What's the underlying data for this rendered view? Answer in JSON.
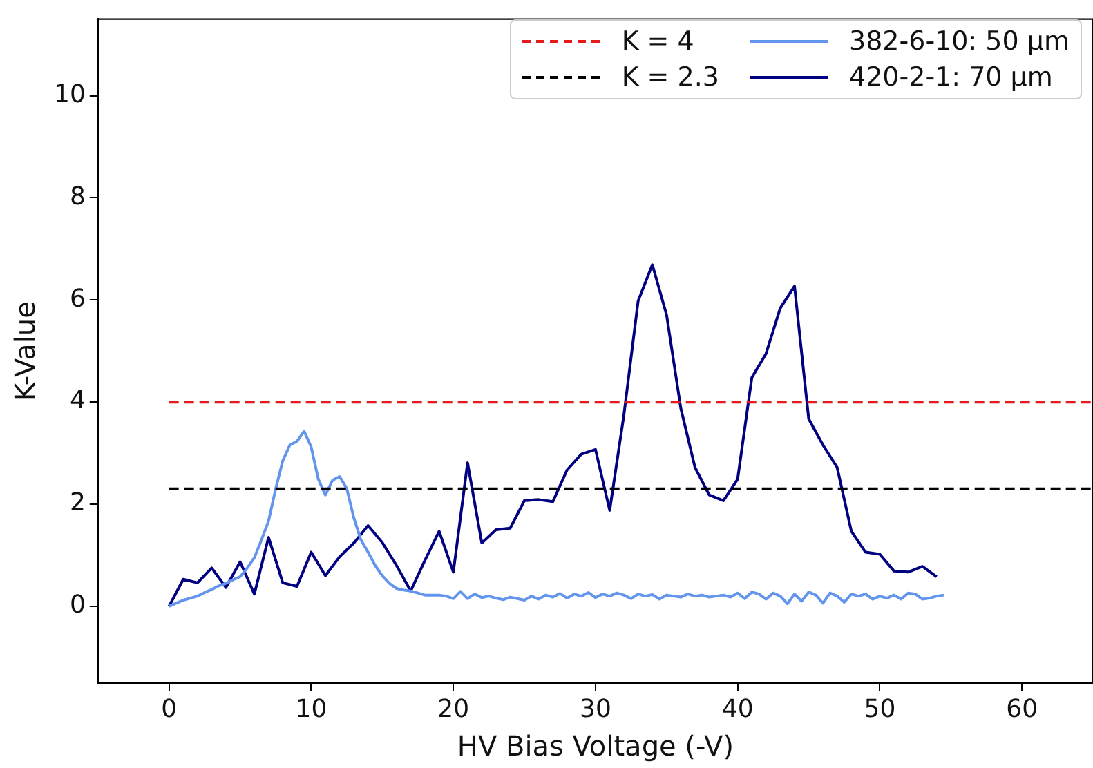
{
  "chart_data": {
    "type": "line",
    "xlabel": "HV Bias Voltage (-V)",
    "ylabel": "K-Value",
    "xlim": [
      -5,
      65
    ],
    "ylim": [
      -1.5,
      11.5
    ],
    "xticks": [
      0,
      10,
      20,
      30,
      40,
      50,
      60
    ],
    "yticks": [
      0,
      2,
      4,
      6,
      8,
      10
    ],
    "grid": false,
    "legend": "top right",
    "marker": "none",
    "series": [
      {
        "name": "K = 4",
        "color": "#e41a1c",
        "line_style": "dashed",
        "x": [
          0,
          65
        ],
        "values": [
          4,
          4
        ]
      },
      {
        "name": "K = 2.3",
        "color": "#000000",
        "line_style": "dashed",
        "x": [
          0,
          65
        ],
        "values": [
          2.3,
          2.3
        ]
      },
      {
        "name": "382-6-10: 50 μm",
        "color": "#6495ed",
        "line_style": "solid",
        "x": [
          0,
          0.5,
          1,
          1.5,
          2,
          2.5,
          3,
          3.5,
          4,
          4.5,
          5,
          5.5,
          6,
          6.5,
          7,
          7.5,
          8,
          8.5,
          9,
          9.5,
          10,
          10.5,
          11,
          11.5,
          12,
          12.5,
          13,
          13.5,
          14,
          14.5,
          15,
          15.5,
          16,
          16.5,
          17,
          17.5,
          18,
          18.5,
          19,
          19.5,
          20,
          20.5,
          21,
          21.5,
          22,
          22.5,
          23,
          23.5,
          24,
          24.5,
          25,
          25.5,
          26,
          26.5,
          27,
          27.5,
          28,
          28.5,
          29,
          29.5,
          30,
          30.5,
          31,
          31.5,
          32,
          32.5,
          33,
          33.5,
          34,
          34.5,
          35,
          35.5,
          36,
          36.5,
          37,
          37.5,
          38,
          38.5,
          39,
          39.5,
          40,
          40.5,
          41,
          41.5,
          42,
          42.5,
          43,
          43.5,
          44,
          44.5,
          45,
          45.5,
          46,
          46.5,
          47,
          47.5,
          48,
          48.5,
          49,
          49.5,
          50,
          50.5,
          51,
          51.5,
          52,
          52.5,
          53,
          53.5,
          54,
          54.5
        ],
        "values": [
          0,
          0.06,
          0.12,
          0.16,
          0.2,
          0.27,
          0.33,
          0.4,
          0.45,
          0.52,
          0.58,
          0.75,
          0.95,
          1.3,
          1.67,
          2.3,
          2.85,
          3.16,
          3.23,
          3.43,
          3.12,
          2.49,
          2.18,
          2.47,
          2.54,
          2.31,
          1.73,
          1.3,
          1.06,
          0.8,
          0.6,
          0.45,
          0.35,
          0.32,
          0.3,
          0.26,
          0.22,
          0.22,
          0.22,
          0.2,
          0.15,
          0.29,
          0.15,
          0.24,
          0.17,
          0.2,
          0.16,
          0.13,
          0.18,
          0.15,
          0.12,
          0.2,
          0.14,
          0.22,
          0.18,
          0.25,
          0.16,
          0.24,
          0.2,
          0.27,
          0.17,
          0.24,
          0.2,
          0.26,
          0.22,
          0.15,
          0.24,
          0.2,
          0.23,
          0.14,
          0.22,
          0.2,
          0.18,
          0.24,
          0.2,
          0.22,
          0.18,
          0.2,
          0.22,
          0.18,
          0.26,
          0.15,
          0.28,
          0.24,
          0.14,
          0.26,
          0.2,
          0.05,
          0.24,
          0.1,
          0.28,
          0.22,
          0.06,
          0.26,
          0.2,
          0.08,
          0.24,
          0.2,
          0.24,
          0.14,
          0.2,
          0.16,
          0.22,
          0.14,
          0.26,
          0.24,
          0.14,
          0.16,
          0.2,
          0.22
        ]
      },
      {
        "name": "420-2-1: 70 μm",
        "color": "#000080",
        "line_style": "solid",
        "x": [
          0,
          1,
          2,
          3,
          4,
          5,
          6,
          7,
          8,
          9,
          10,
          11,
          12,
          13,
          14,
          15,
          16,
          17,
          18,
          19,
          20,
          21,
          22,
          23,
          24,
          25,
          26,
          27,
          28,
          29,
          30,
          31,
          32,
          33,
          34,
          35,
          36,
          37,
          38,
          39,
          40,
          41,
          42,
          43,
          44,
          45,
          46,
          47,
          48,
          49,
          50,
          51,
          52,
          53,
          54
        ],
        "values": [
          0,
          0.53,
          0.46,
          0.75,
          0.37,
          0.87,
          0.24,
          1.35,
          0.46,
          0.39,
          1.06,
          0.6,
          0.97,
          1.24,
          1.58,
          1.25,
          0.8,
          0.3,
          0.9,
          1.47,
          0.67,
          2.81,
          1.24,
          1.5,
          1.53,
          2.07,
          2.09,
          2.05,
          2.67,
          2.98,
          3.07,
          1.88,
          3.75,
          5.98,
          6.69,
          5.71,
          3.88,
          2.72,
          2.18,
          2.07,
          2.49,
          4.48,
          4.95,
          5.84,
          6.27,
          3.67,
          3.16,
          2.72,
          1.47,
          1.06,
          1.02,
          0.69,
          0.67,
          0.78,
          0.58
        ]
      }
    ]
  }
}
